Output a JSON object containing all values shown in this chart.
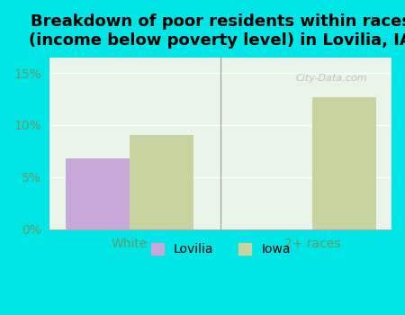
{
  "title": "Breakdown of poor residents within races\n(income below poverty level) in Lovilia, IA",
  "categories": [
    "White",
    "2+ races"
  ],
  "lovilia_values": [
    6.8,
    0.0
  ],
  "iowa_values": [
    9.0,
    12.7
  ],
  "lovilia_color": "#c8a8d8",
  "iowa_color": "#c8d4a0",
  "background_color": "#00e5e5",
  "plot_bg_color": "#e8f5e8",
  "bar_width": 0.35,
  "ylim": [
    0,
    0.165
  ],
  "yticks": [
    0,
    0.05,
    0.1,
    0.15
  ],
  "ytick_labels": [
    "0%",
    "5%",
    "10%",
    "15%"
  ],
  "title_fontsize": 13,
  "tick_label_color": "#669966",
  "legend_labels": [
    "Lovilia",
    "Iowa"
  ],
  "watermark": "City-Data.com"
}
